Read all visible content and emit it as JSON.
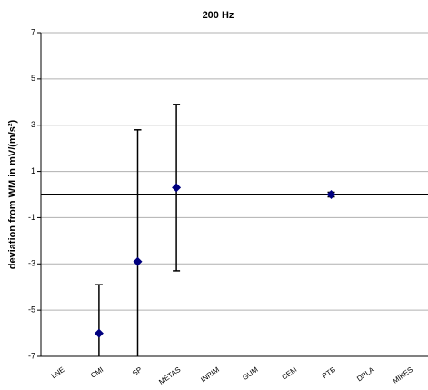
{
  "chart_data": {
    "type": "errorbar",
    "title": "200 Hz",
    "y_label": "deviation from WM in mV/(m/s²)",
    "categories": [
      "LNE",
      "CMI",
      "SP",
      "METAS",
      "INRIM",
      "GUM",
      "CEM",
      "PTB",
      "DPLA",
      "MIKES"
    ],
    "series": [
      {
        "color": "#00007f",
        "values": [
          null,
          -6.0,
          -2.9,
          0.3,
          null,
          null,
          null,
          0.0,
          null,
          null
        ],
        "errors": [
          null,
          2.1,
          5.7,
          3.6,
          null,
          null,
          null,
          0.1,
          null,
          null
        ]
      }
    ],
    "ylim": [
      -7,
      7
    ],
    "yticks": [
      -7,
      -5,
      -3,
      -1,
      1,
      3,
      5,
      7
    ],
    "grid": true
  }
}
